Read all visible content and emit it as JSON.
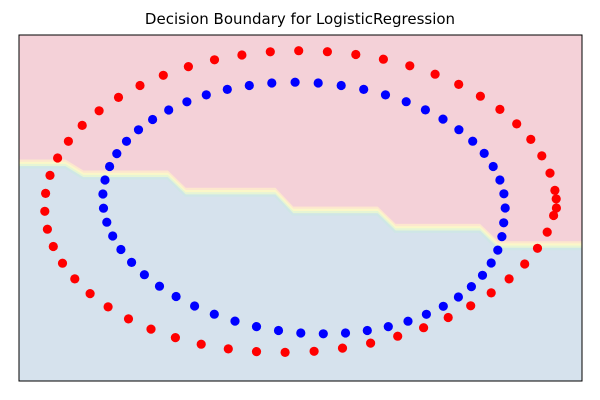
{
  "chart_data": {
    "type": "scatter",
    "title": "Decision Boundary for LogisticRegression",
    "xlabel": "",
    "ylabel": "",
    "xlim": [
      -1.1,
      1.1
    ],
    "ylim": [
      -1.1,
      1.1
    ],
    "xticks": [],
    "yticks": [],
    "grid": false,
    "legend": "none",
    "background_regions": [
      {
        "name": "",
        "position": "upper",
        "color": "#f4d1d8"
      },
      {
        "name": "",
        "position": "lower",
        "color": "#d6e2ed"
      }
    ],
    "decision_boundary": {
      "x": [
        -1.1,
        -0.92,
        -0.85,
        -0.52,
        -0.45,
        -0.1,
        -0.03,
        0.3,
        0.37,
        0.7,
        0.77,
        1.1
      ],
      "y": [
        0.28,
        0.28,
        0.21,
        0.21,
        0.1,
        0.1,
        -0.02,
        -0.02,
        -0.13,
        -0.13,
        -0.24,
        -0.24
      ],
      "band_colors": [
        "#fde7ce",
        "#fbf7c9",
        "#e6f5d4",
        "#cfe6e6"
      ]
    },
    "series": [
      {
        "color": "#ff0000",
        "marker": "circle",
        "x": [
          1.0,
          0.994,
          0.975,
          0.943,
          0.9,
          0.845,
          0.779,
          0.703,
          0.618,
          0.526,
          0.427,
          0.324,
          0.216,
          0.105,
          -0.007,
          -0.118,
          -0.229,
          -0.336,
          -0.438,
          -0.536,
          -0.627,
          -0.711,
          -0.787,
          -0.853,
          -0.907,
          -0.949,
          -0.979,
          -0.996,
          -0.999,
          -0.989,
          -0.966,
          -0.93,
          -0.882,
          -0.822,
          -0.752,
          -0.672,
          -0.584,
          -0.489,
          -0.388,
          -0.282,
          -0.172,
          -0.06,
          0.053,
          0.164,
          0.274,
          0.38,
          0.481,
          0.577,
          0.665,
          0.745,
          0.815,
          0.876,
          0.926,
          0.964,
          0.989,
          0.999
        ],
        "y": [
          0.0,
          0.112,
          0.222,
          0.331,
          0.436,
          0.535,
          0.627,
          0.711,
          0.786,
          0.851,
          0.904,
          0.946,
          0.976,
          0.994,
          1.0,
          0.993,
          0.973,
          0.942,
          0.899,
          0.844,
          0.779,
          0.703,
          0.618,
          0.525,
          0.424,
          0.318,
          0.207,
          0.093,
          -0.021,
          -0.135,
          -0.245,
          -0.351,
          -0.451,
          -0.544,
          -0.629,
          -0.705,
          -0.77,
          -0.824,
          -0.866,
          -0.896,
          -0.913,
          -0.918,
          -0.911,
          -0.891,
          -0.859,
          -0.815,
          -0.761,
          -0.696,
          -0.622,
          -0.54,
          -0.451,
          -0.356,
          -0.256,
          -0.153,
          -0.048,
          0.058
        ]
      },
      {
        "color": "#0000ff",
        "marker": "circle",
        "x": [
          0.8,
          0.795,
          0.779,
          0.753,
          0.718,
          0.673,
          0.619,
          0.557,
          0.488,
          0.413,
          0.332,
          0.247,
          0.159,
          0.069,
          -0.021,
          -0.112,
          -0.2,
          -0.286,
          -0.368,
          -0.444,
          -0.515,
          -0.578,
          -0.633,
          -0.68,
          -0.718,
          -0.746,
          -0.764,
          -0.772,
          -0.77,
          -0.757,
          -0.734,
          -0.702,
          -0.66,
          -0.61,
          -0.551,
          -0.486,
          -0.414,
          -0.337,
          -0.256,
          -0.172,
          -0.086,
          0.001,
          0.089,
          0.176,
          0.261,
          0.343,
          0.42,
          0.492,
          0.558,
          0.617,
          0.668,
          0.711,
          0.745,
          0.771,
          0.787,
          0.794
        ],
        "y": [
          0.0,
          0.09,
          0.178,
          0.264,
          0.347,
          0.425,
          0.498,
          0.565,
          0.624,
          0.676,
          0.719,
          0.754,
          0.779,
          0.795,
          0.8,
          0.795,
          0.779,
          0.754,
          0.719,
          0.675,
          0.623,
          0.563,
          0.497,
          0.424,
          0.346,
          0.264,
          0.178,
          0.089,
          -0.001,
          -0.09,
          -0.178,
          -0.264,
          -0.346,
          -0.424,
          -0.497,
          -0.563,
          -0.623,
          -0.675,
          -0.719,
          -0.754,
          -0.779,
          -0.795,
          -0.8,
          -0.795,
          -0.779,
          -0.754,
          -0.72,
          -0.676,
          -0.625,
          -0.566,
          -0.5,
          -0.428,
          -0.35,
          -0.268,
          -0.182,
          -0.094
        ]
      }
    ]
  }
}
